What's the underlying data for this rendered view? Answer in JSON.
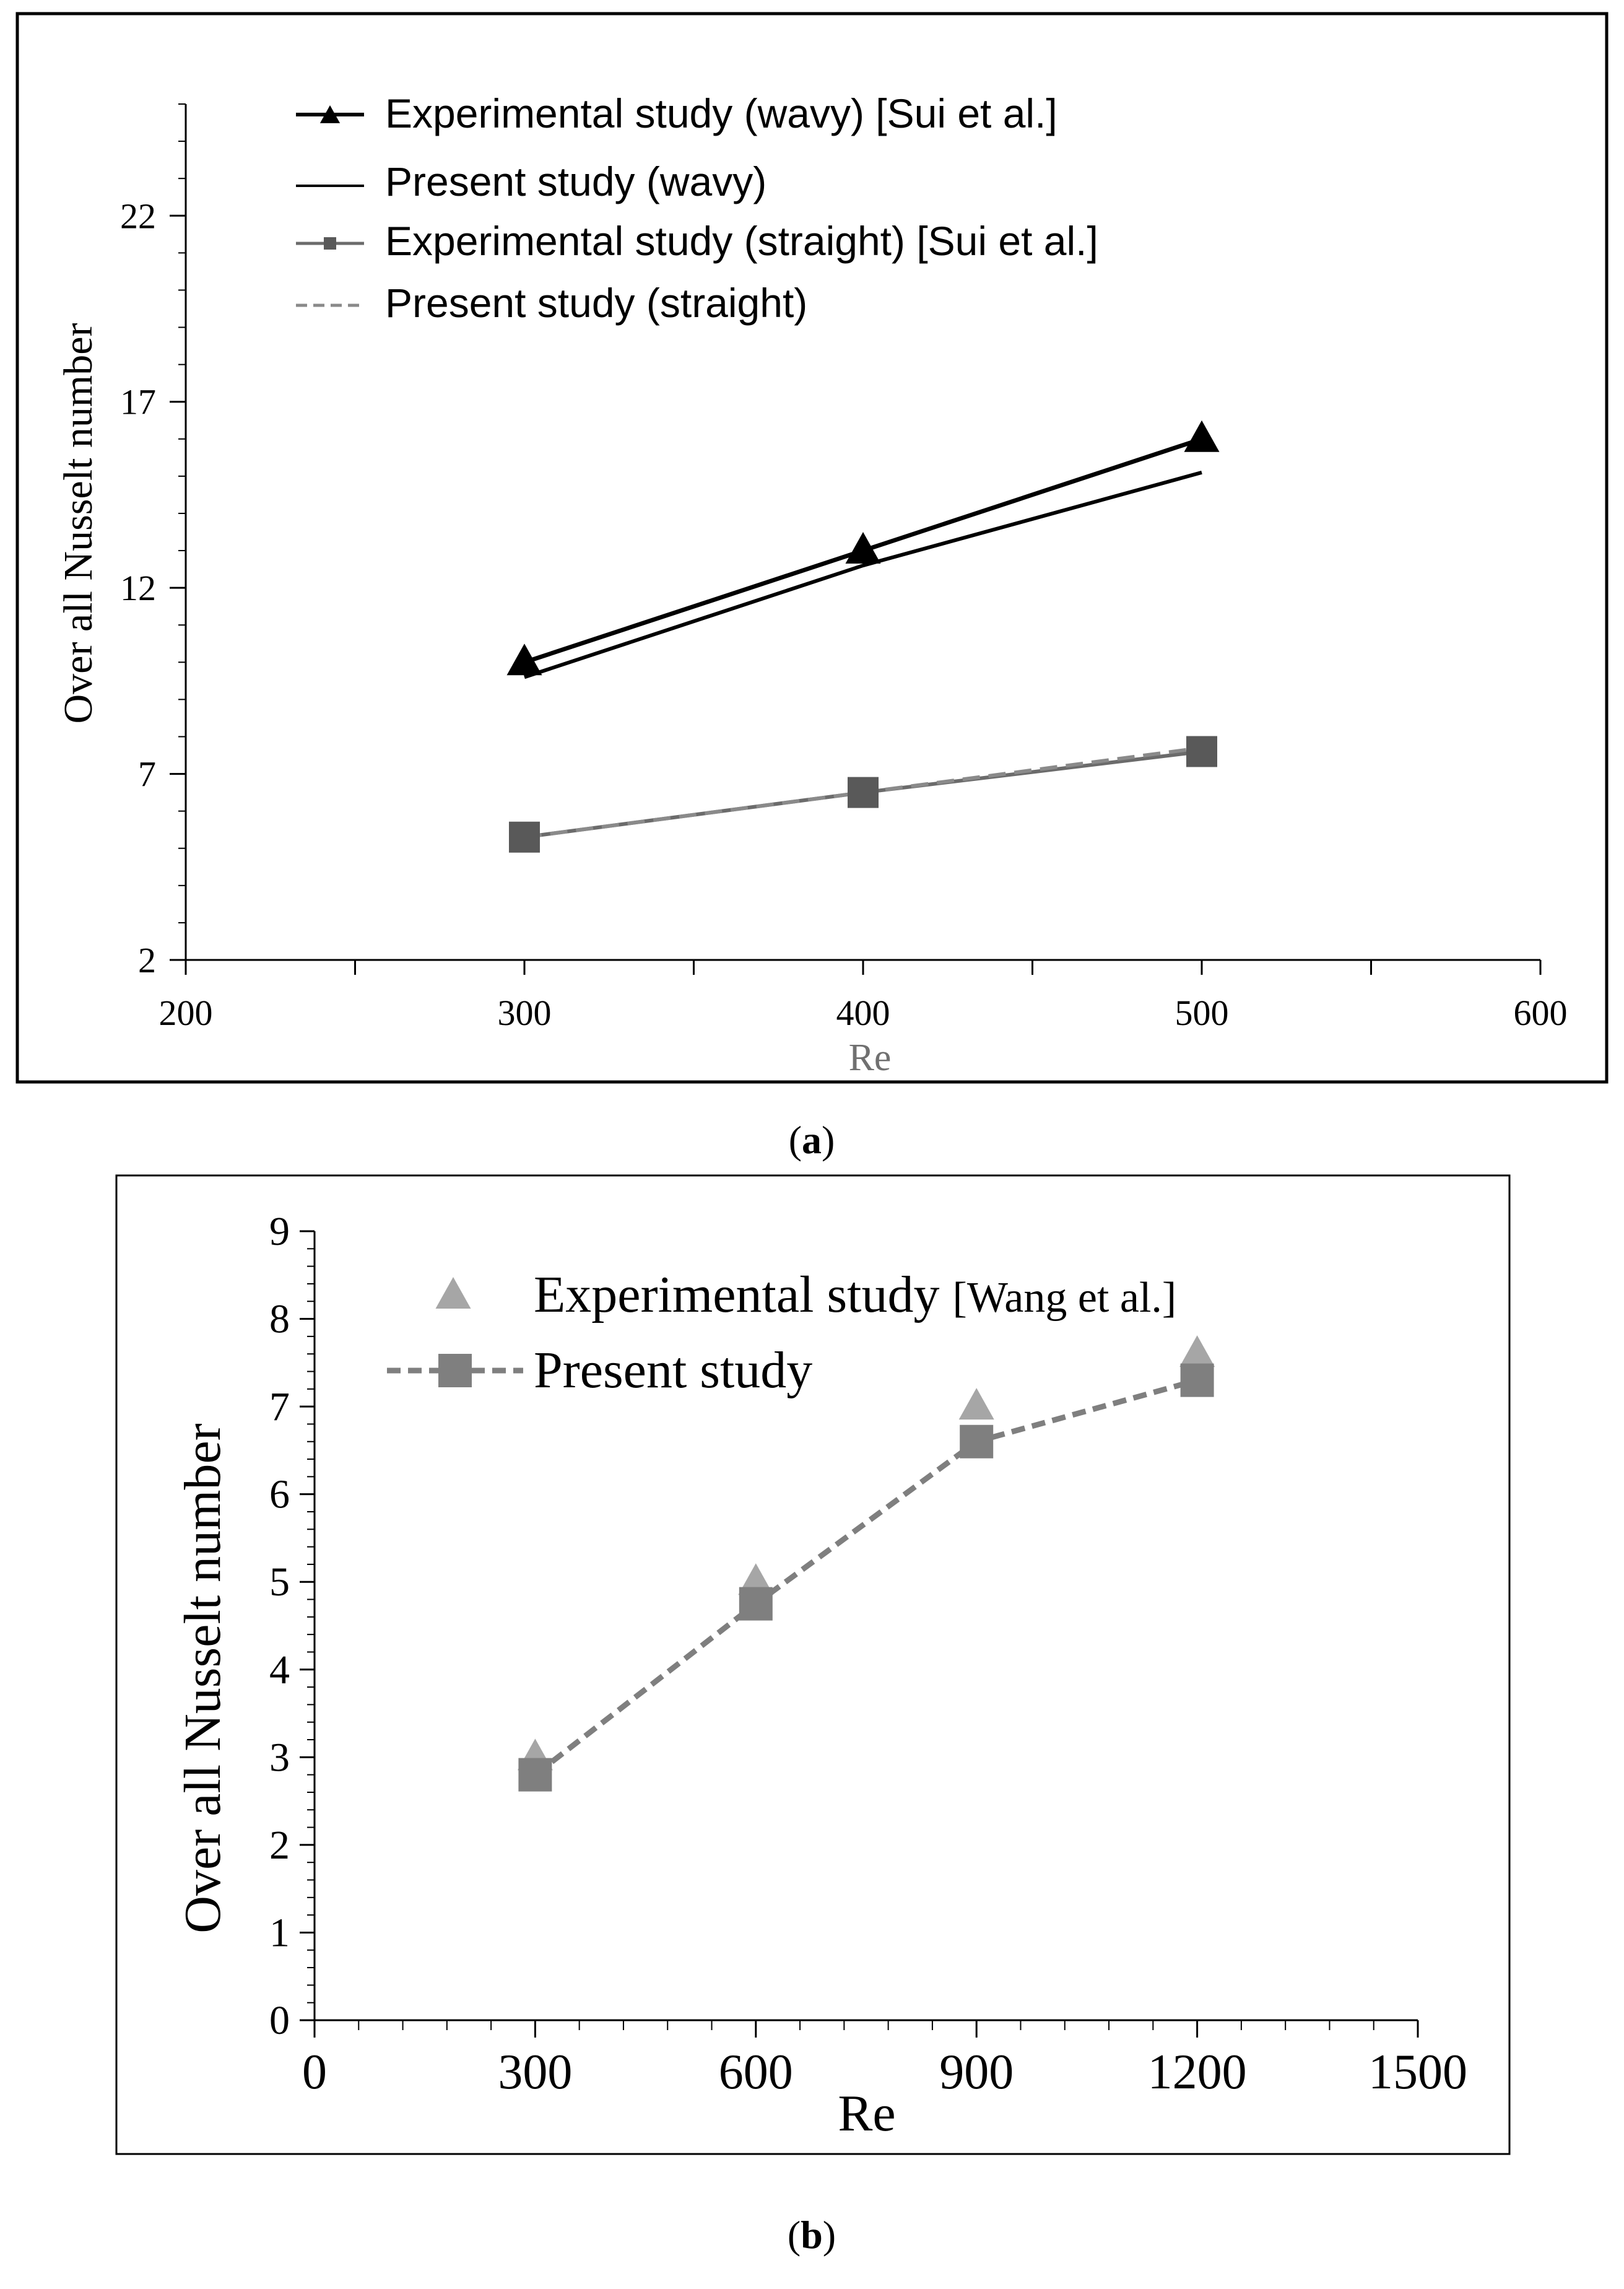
{
  "chart_data": [
    {
      "type": "line",
      "panel_label": "a",
      "xlabel": "Re",
      "ylabel": "Over all Nusselt number",
      "xlim": [
        200,
        600
      ],
      "ylim": [
        2,
        25
      ],
      "x_ticks": [
        200,
        300,
        400,
        500,
        600
      ],
      "y_ticks": [
        2,
        7,
        12,
        17,
        22
      ],
      "grid": false,
      "legend_position": "top-left",
      "series": [
        {
          "name": "Experimental study (wavy) [Sui et al.]",
          "style": "solid-triangle",
          "color": "#000000",
          "x": [
            300,
            400,
            500
          ],
          "y": [
            10.0,
            13.0,
            16.0
          ]
        },
        {
          "name": "Present study (wavy)",
          "style": "solid",
          "color": "#000000",
          "x": [
            300,
            400,
            500
          ],
          "y": [
            9.6,
            12.6,
            15.1
          ]
        },
        {
          "name": "Experimental study (straight) [Sui et al.]",
          "style": "solid-square",
          "color": "#6b6b6b",
          "x": [
            300,
            400,
            500
          ],
          "y": [
            5.3,
            6.5,
            7.6
          ]
        },
        {
          "name": "Present study (straight)",
          "style": "dashed",
          "color": "#8a8a8a",
          "x": [
            300,
            400,
            500
          ],
          "y": [
            5.3,
            6.5,
            7.7
          ]
        }
      ]
    },
    {
      "type": "line",
      "panel_label": "b",
      "xlabel": "Re",
      "ylabel": "Over all Nusselt number",
      "xlim": [
        0,
        1500
      ],
      "ylim": [
        0,
        9
      ],
      "x_ticks": [
        0,
        300,
        600,
        900,
        1200,
        1500
      ],
      "y_ticks": [
        0,
        1,
        2,
        3,
        4,
        5,
        6,
        7,
        8,
        9
      ],
      "grid": false,
      "legend_position": "top-center",
      "series": [
        {
          "name": "Experimental study",
          "name_suffix": "[Wang et al.]",
          "style": "triangle-markers",
          "color": "#a6a6a6",
          "x": [
            300,
            600,
            900,
            1200
          ],
          "y": [
            3.0,
            5.0,
            7.0,
            7.6
          ]
        },
        {
          "name": "Present study",
          "style": "dashed-square",
          "color": "#7f7f7f",
          "x": [
            300,
            600,
            900,
            1200
          ],
          "y": [
            2.8,
            4.75,
            6.6,
            7.3
          ]
        }
      ]
    }
  ]
}
